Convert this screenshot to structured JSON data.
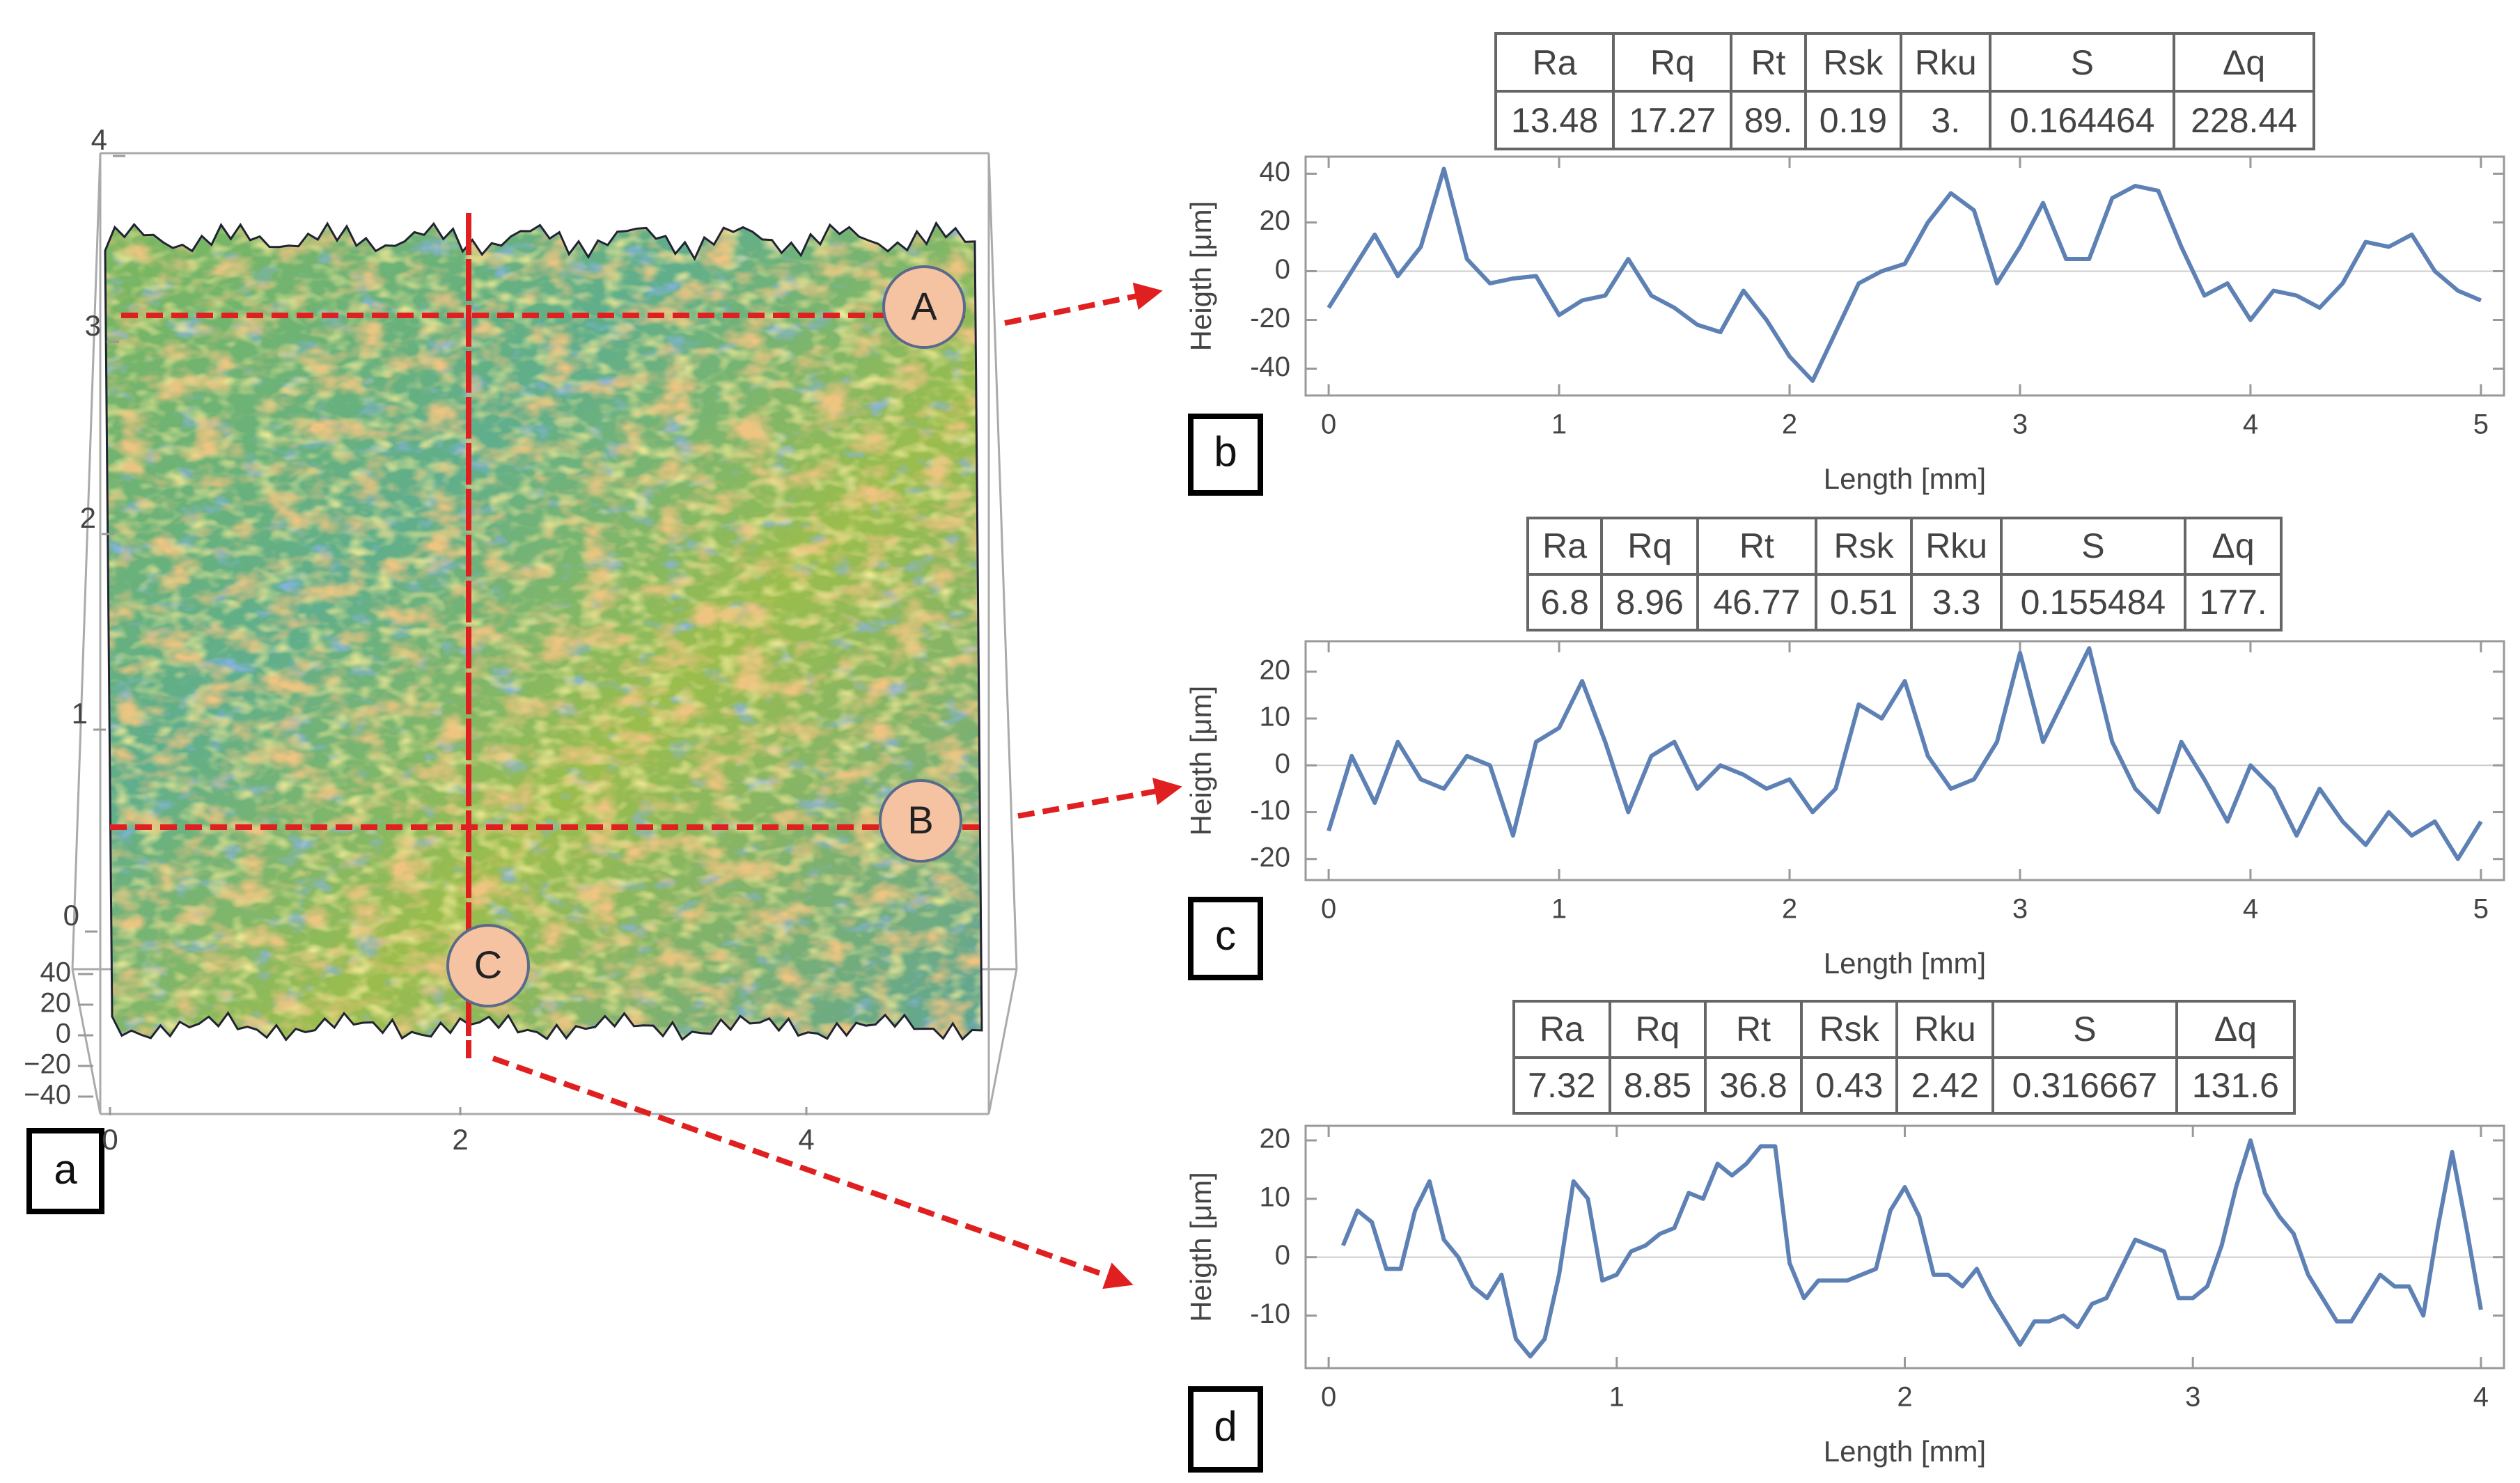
{
  "surface": {
    "label": "a",
    "yticks": [
      0,
      1,
      2,
      3,
      4
    ],
    "xticks": [
      0,
      2,
      4
    ],
    "zticks": [
      40,
      20,
      0,
      {
        "value": -20,
        "label": "−20"
      },
      {
        "value": -40,
        "label": "−40"
      }
    ],
    "markers": [
      "A",
      "B",
      "C"
    ]
  },
  "chart_data": [
    {
      "type": "line",
      "label": "b",
      "xlabel": "Length [mm]",
      "ylabel": "Heigth [μm]",
      "color": "#5e81b5",
      "table": {
        "headers": [
          "Ra",
          "Rq",
          "Rt",
          "Rsk",
          "Rku",
          "S",
          "Δq"
        ],
        "cells": [
          "13.48",
          "17.27",
          "89.",
          "0.19",
          "3.",
          "0.164464",
          "228.44"
        ]
      },
      "xlim": [
        -0.1,
        5.1
      ],
      "ylim": [
        -51,
        47
      ],
      "xticks": [
        0,
        1,
        2,
        3,
        4,
        5
      ],
      "yticks": [
        -40,
        -20,
        0,
        20,
        40
      ],
      "x": [
        0,
        0.1,
        0.2,
        0.3,
        0.4,
        0.5,
        0.6,
        0.7,
        0.8,
        0.9,
        1.0,
        1.1,
        1.2,
        1.3,
        1.4,
        1.5,
        1.6,
        1.7,
        1.8,
        1.9,
        2.0,
        2.1,
        2.2,
        2.3,
        2.4,
        2.5,
        2.6,
        2.7,
        2.8,
        2.9,
        3.0,
        3.1,
        3.2,
        3.3,
        3.4,
        3.5,
        3.6,
        3.7,
        3.8,
        3.9,
        4.0,
        4.1,
        4.2,
        4.3,
        4.4,
        4.5,
        4.6,
        4.7,
        4.8,
        4.9,
        5.0
      ],
      "values": [
        -15,
        0,
        15,
        -2,
        10,
        42,
        5,
        -5,
        -3,
        -2,
        -18,
        -12,
        -10,
        5,
        -10,
        -15,
        -22,
        -25,
        -8,
        -20,
        -35,
        -45,
        -25,
        -5,
        0,
        3,
        20,
        32,
        25,
        -5,
        10,
        28,
        5,
        5,
        30,
        35,
        33,
        10,
        -10,
        -5,
        -20,
        -8,
        -10,
        -15,
        -5,
        12,
        10,
        15,
        0,
        -8,
        -12
      ]
    },
    {
      "type": "line",
      "label": "c",
      "xlabel": "Length [mm]",
      "ylabel": "Heigth [μm]",
      "color": "#5e81b5",
      "table": {
        "headers": [
          "Ra",
          "Rq",
          "Rt",
          "Rsk",
          "Rku",
          "S",
          "Δq"
        ],
        "cells": [
          "6.8",
          "8.96",
          "46.77",
          "0.51",
          "3.3",
          "0.155484",
          "177."
        ]
      },
      "xlim": [
        -0.1,
        5.1
      ],
      "ylim": [
        -24.5,
        26.5
      ],
      "xticks": [
        0,
        1,
        2,
        3,
        4,
        5
      ],
      "yticks": [
        -20,
        -10,
        0,
        10,
        20
      ],
      "x": [
        0,
        0.1,
        0.2,
        0.3,
        0.4,
        0.5,
        0.6,
        0.7,
        0.8,
        0.9,
        1.0,
        1.1,
        1.2,
        1.3,
        1.4,
        1.5,
        1.6,
        1.7,
        1.8,
        1.9,
        2.0,
        2.1,
        2.2,
        2.3,
        2.4,
        2.5,
        2.6,
        2.7,
        2.8,
        2.9,
        3.0,
        3.1,
        3.2,
        3.3,
        3.4,
        3.5,
        3.6,
        3.7,
        3.8,
        3.9,
        4.0,
        4.1,
        4.2,
        4.3,
        4.4,
        4.5,
        4.6,
        4.7,
        4.8,
        4.9,
        5.0
      ],
      "values": [
        -14,
        2,
        -8,
        5,
        -3,
        -5,
        2,
        0,
        -15,
        5,
        8,
        18,
        5,
        -10,
        2,
        5,
        -5,
        0,
        -2,
        -5,
        -3,
        -10,
        -5,
        13,
        10,
        18,
        2,
        -5,
        -3,
        5,
        24,
        5,
        15,
        25,
        5,
        -5,
        -10,
        5,
        -3,
        -12,
        0,
        -5,
        -15,
        -5,
        -12,
        -17,
        -10,
        -15,
        -12,
        -20,
        -12
      ]
    },
    {
      "type": "line",
      "label": "d",
      "xlabel": "Length [mm]",
      "ylabel": "Heigth [μm]",
      "color": "#5e81b5",
      "table": {
        "headers": [
          "Ra",
          "Rq",
          "Rt",
          "Rsk",
          "Rku",
          "S",
          "Δq"
        ],
        "cells": [
          "7.32",
          "8.85",
          "36.8",
          "0.43",
          "2.42",
          "0.316667",
          "131.6"
        ]
      },
      "xlim": [
        -0.08,
        4.08
      ],
      "ylim": [
        -19,
        22.5
      ],
      "xticks": [
        0,
        1,
        2,
        3,
        4
      ],
      "yticks": [
        -10,
        0,
        10,
        20
      ],
      "x": [
        0.05,
        0.1,
        0.15,
        0.2,
        0.25,
        0.3,
        0.35,
        0.4,
        0.45,
        0.5,
        0.55,
        0.6,
        0.65,
        0.7,
        0.75,
        0.8,
        0.85,
        0.9,
        0.95,
        1.0,
        1.05,
        1.1,
        1.15,
        1.2,
        1.25,
        1.3,
        1.35,
        1.4,
        1.45,
        1.5,
        1.55,
        1.6,
        1.65,
        1.7,
        1.75,
        1.8,
        1.85,
        1.9,
        1.95,
        2.0,
        2.05,
        2.1,
        2.15,
        2.2,
        2.25,
        2.3,
        2.35,
        2.4,
        2.45,
        2.5,
        2.55,
        2.6,
        2.65,
        2.7,
        2.75,
        2.8,
        2.85,
        2.9,
        2.95,
        3.0,
        3.05,
        3.1,
        3.15,
        3.2,
        3.25,
        3.3,
        3.35,
        3.4,
        3.45,
        3.5,
        3.55,
        3.6,
        3.65,
        3.7,
        3.75,
        3.8,
        3.85,
        3.9,
        3.95,
        4.0
      ],
      "values": [
        2,
        8,
        6,
        -2,
        -2,
        8,
        13,
        3,
        0,
        -5,
        -7,
        -3,
        -14,
        -17,
        -14,
        -3,
        13,
        10,
        -4,
        -3,
        1,
        2,
        4,
        5,
        11,
        10,
        16,
        14,
        16,
        19,
        19,
        -1,
        -7,
        -4,
        -4,
        -4,
        -3,
        -2,
        8,
        12,
        7,
        -3,
        -3,
        -5,
        -2,
        -7,
        -11,
        -15,
        -11,
        -11,
        -10,
        -12,
        -8,
        -7,
        -2,
        3,
        2,
        1,
        -7,
        -7,
        -5,
        2,
        12,
        20,
        11,
        7,
        4,
        -3,
        -7,
        -11,
        -11,
        -7,
        -3,
        -5,
        -5,
        -10,
        5,
        18,
        5,
        -9
      ]
    }
  ]
}
